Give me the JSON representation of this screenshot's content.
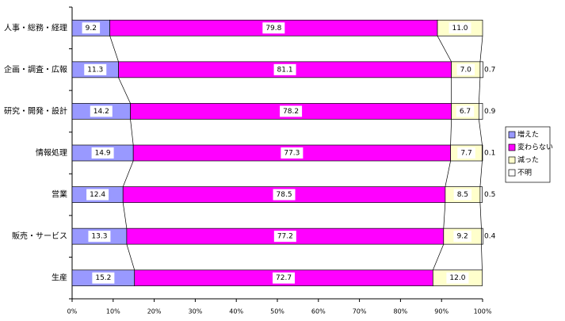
{
  "chart_data": {
    "type": "stacked-bar-horizontal",
    "categories": [
      "人事・総務・経理",
      "企画・調査・広報",
      "研究・開発・設計",
      "情報処理",
      "営業",
      "販売・サービス",
      "生産"
    ],
    "series": [
      {
        "name": "増えた",
        "color": "#9999ff",
        "values": [
          9.2,
          11.3,
          14.2,
          14.9,
          12.4,
          13.3,
          15.2
        ],
        "value_labels": [
          "9.2",
          "11.3",
          "14.2",
          "14.9",
          "12.4",
          "13.3",
          "15.2"
        ]
      },
      {
        "name": "変わらない",
        "color": "#ff00ff",
        "values": [
          79.8,
          81.1,
          78.2,
          77.3,
          78.5,
          77.2,
          72.7
        ],
        "value_labels": [
          "79.8",
          "81.1",
          "78.2",
          "77.3",
          "78.5",
          "77.2",
          "72.7"
        ]
      },
      {
        "name": "減った",
        "color": "#ffffcc",
        "values": [
          11.0,
          7.0,
          6.7,
          7.7,
          8.5,
          9.2,
          12.0
        ],
        "value_labels": [
          "11.0",
          "7.0",
          "6.7",
          "7.7",
          "8.5",
          "9.2",
          "12.0"
        ]
      },
      {
        "name": "不明",
        "color": "#ffffff",
        "values": [
          0,
          0.7,
          0.9,
          0.1,
          0.5,
          0.4,
          0
        ],
        "value_labels": [
          null,
          "0.7",
          "0.9",
          "0.1",
          "0.5",
          "0.4",
          null
        ]
      }
    ],
    "xlim": [
      0,
      100
    ],
    "xticks": [
      {
        "value": 0,
        "label": "0%"
      },
      {
        "value": 10,
        "label": "10%"
      },
      {
        "value": 20,
        "label": "20%"
      },
      {
        "value": 30,
        "label": "30%"
      },
      {
        "value": 40,
        "label": "40%"
      },
      {
        "value": 50,
        "label": "50%"
      },
      {
        "value": 60,
        "label": "60%"
      },
      {
        "value": 70,
        "label": "70%"
      },
      {
        "value": 80,
        "label": "80%"
      },
      {
        "value": 90,
        "label": "90%"
      },
      {
        "value": 100,
        "label": "100%"
      }
    ],
    "legend": "right"
  }
}
